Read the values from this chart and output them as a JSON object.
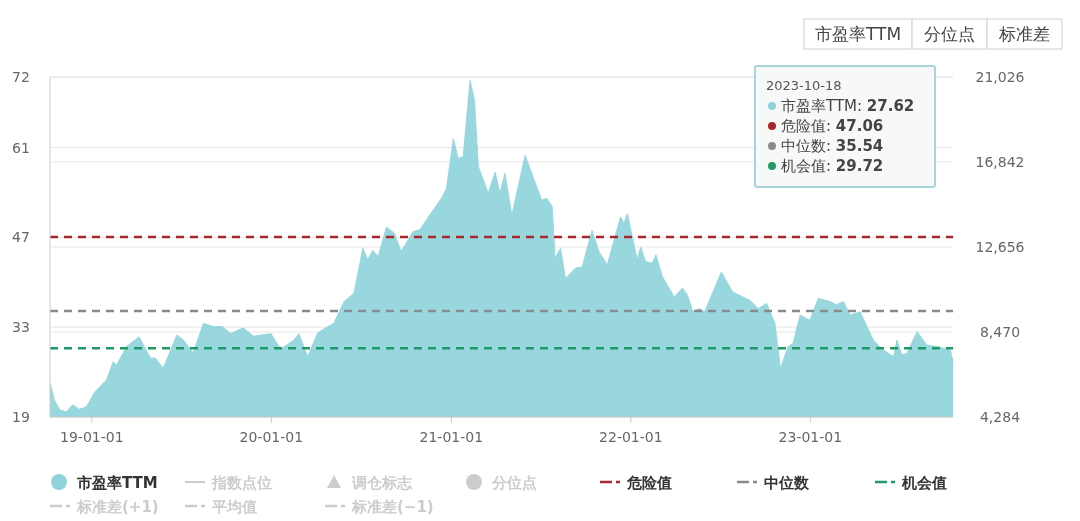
{
  "chart_data": {
    "type": "area",
    "x": [
      "2018-10-08",
      "2018-10-17",
      "2018-10-28",
      "2018-11-10",
      "2018-11-23",
      "2018-12-07",
      "2018-12-21",
      "2019-01-07",
      "2019-01-31",
      "2019-02-13",
      "2019-02-20",
      "2019-03-13",
      "2019-04-07",
      "2019-04-30",
      "2019-05-10",
      "2019-05-26",
      "2019-06-23",
      "2019-07-06",
      "2019-07-26",
      "2019-08-16",
      "2019-09-05",
      "2019-09-23",
      "2019-10-10",
      "2019-11-05",
      "2019-11-26",
      "2019-12-31",
      "2020-01-20",
      "2020-02-16",
      "2020-02-26",
      "2020-03-15",
      "2020-04-04",
      "2020-04-25",
      "2020-05-07",
      "2020-05-28",
      "2020-06-17",
      "2020-07-05",
      "2020-07-15",
      "2020-07-25",
      "2020-08-05",
      "2020-08-22",
      "2020-09-07",
      "2020-09-21",
      "2020-10-15",
      "2020-10-29",
      "2020-11-18",
      "2020-12-12",
      "2020-12-22",
      "2021-01-05",
      "2021-01-15",
      "2021-01-25",
      "2021-02-08",
      "2021-02-17",
      "2021-02-25",
      "2021-03-17",
      "2021-03-31",
      "2021-04-10",
      "2021-04-20",
      "2021-05-04",
      "2021-05-31",
      "2021-06-21",
      "2021-07-04",
      "2021-07-14",
      "2021-07-25",
      "2021-07-31",
      "2021-08-11",
      "2021-08-21",
      "2021-09-10",
      "2021-09-24",
      "2021-10-14",
      "2021-10-28",
      "2021-11-14",
      "2021-12-11",
      "2021-12-18",
      "2021-12-25",
      "2022-01-14",
      "2022-01-21",
      "2022-01-31",
      "2022-02-14",
      "2022-02-21",
      "2022-03-06",
      "2022-03-30",
      "2022-04-16",
      "2022-04-26",
      "2022-05-07",
      "2022-05-20",
      "2022-05-31",
      "2022-07-04",
      "2022-07-27",
      "2022-08-17",
      "2022-08-31",
      "2022-09-17",
      "2022-10-04",
      "2022-10-21",
      "2022-11-01",
      "2022-11-17",
      "2022-11-27",
      "2022-12-11",
      "2022-12-31",
      "2023-01-17",
      "2023-02-10",
      "2023-02-23",
      "2023-03-09",
      "2023-03-23",
      "2023-04-12",
      "2023-05-09",
      "2023-05-30",
      "2023-06-19",
      "2023-06-26",
      "2023-07-06",
      "2023-07-16",
      "2023-08-06",
      "2023-08-26",
      "2023-09-16",
      "2023-10-13",
      "2023-10-18"
    ],
    "series": [
      {
        "name": "市盈率TTM",
        "color": "#8ed3dc",
        "values": [
          24.3,
          21.6,
          20.1,
          19.8,
          20.9,
          20.2,
          20.6,
          22.9,
          24.8,
          27.6,
          27.1,
          30.0,
          31.5,
          28.2,
          28.2,
          26.6,
          31.8,
          31.0,
          29.0,
          33.6,
          33.1,
          33.1,
          32.0,
          32.9,
          31.6,
          32.0,
          29.6,
          31.0,
          32.0,
          28.4,
          32.1,
          33.1,
          33.6,
          37.0,
          38.3,
          45.3,
          43.5,
          45.0,
          44.0,
          48.6,
          47.7,
          44.8,
          47.9,
          48.2,
          50.5,
          53.1,
          54.6,
          62.4,
          59.3,
          59.6,
          71.5,
          68.4,
          58.0,
          53.9,
          57.2,
          53.9,
          57.0,
          50.5,
          59.8,
          55.4,
          52.8,
          53.1,
          51.8,
          43.8,
          45.3,
          40.6,
          42.2,
          42.4,
          48.1,
          44.8,
          42.7,
          50.2,
          49.2,
          50.7,
          43.5,
          45.5,
          43.2,
          43.0,
          44.3,
          40.9,
          37.7,
          39.1,
          38.0,
          35.4,
          35.9,
          35.4,
          41.6,
          38.5,
          37.7,
          37.2,
          35.9,
          36.7,
          33.6,
          26.6,
          30.0,
          30.5,
          34.9,
          34.1,
          37.5,
          37.0,
          36.5,
          37.0,
          34.9,
          35.4,
          31.0,
          29.4,
          28.4,
          31.0,
          28.7,
          28.9,
          32.3,
          30.2,
          30.0,
          29.4,
          27.6
        ]
      }
    ],
    "xlim": [
      "2018-10-08",
      "2023-10-18"
    ],
    "xticks": [
      {
        "value": "2019-01-01",
        "label": "19-01-01"
      },
      {
        "value": "2020-01-01",
        "label": "20-01-01"
      },
      {
        "value": "2021-01-01",
        "label": "21-01-01"
      },
      {
        "value": "2022-01-01",
        "label": "22-01-01"
      },
      {
        "value": "2023-01-01",
        "label": "23-01-01"
      }
    ],
    "ylim": [
      19,
      72
    ],
    "yticks": [
      19,
      33,
      47,
      61,
      72
    ],
    "y2lim": [
      4284,
      21026
    ],
    "y2ticks": [
      {
        "value": 4284,
        "label": "4,284"
      },
      {
        "value": 8470,
        "label": "8,470"
      },
      {
        "value": 12656,
        "label": "12,656"
      },
      {
        "value": 16842,
        "label": "16,842"
      },
      {
        "value": 21026,
        "label": "21,026"
      }
    ],
    "ref_lines": [
      {
        "axis": "y",
        "value": 47.06,
        "label": "危险值",
        "color": "#a8262c",
        "line_style": "dashed"
      },
      {
        "axis": "y",
        "value": 35.54,
        "label": "中位数",
        "color": "#8a8a8e",
        "line_style": "dashed"
      },
      {
        "axis": "y",
        "value": 29.72,
        "label": "机会值",
        "color": "#1e9a64",
        "line_style": "dashed"
      }
    ],
    "annotations": [
      "2023-10-18",
      "市盈率TTM: 27.62",
      "危险值: 47.06",
      "中位数: 35.54",
      "机会值: 29.72",
      "指数点位",
      "调仓标志",
      "分位点",
      "标准差(+1)",
      "平均值",
      "标准差(−1)",
      "市盈率TTM",
      "分位点",
      "标准差"
    ],
    "grid": true,
    "legend": "bottom"
  }
}
